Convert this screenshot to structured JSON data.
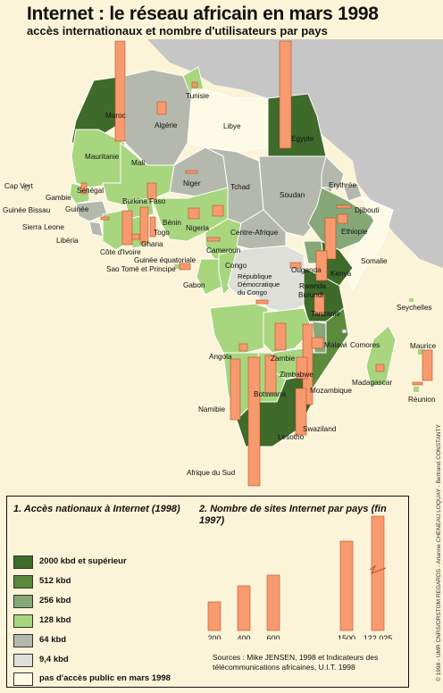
{
  "title": "Internet : le réseau africain en mars 1998",
  "subtitle": "accès internationaux et nombre d'utilisateurs par pays",
  "colors": {
    "sea": "#c6c6c6",
    "bg": "#fbf4d8",
    "bar": "#f79a6e",
    "c2000": "#3e6a2a",
    "c512": "#5b8a3d",
    "c256": "#86a878",
    "c128": "#a8d67f",
    "c64": "#b5b8ad",
    "c9": "#dedfd9",
    "c0": "#fdfbe6"
  },
  "countries": [
    {
      "name": "Tunisie"
    },
    {
      "name": "Maroc"
    },
    {
      "name": "Algérie"
    },
    {
      "name": "Libye"
    },
    {
      "name": "Egypte"
    },
    {
      "name": "Mauritanie"
    },
    {
      "name": "Mali"
    },
    {
      "name": "Niger"
    },
    {
      "name": "Tchad"
    },
    {
      "name": "Soudan"
    },
    {
      "name": "Cap Vert"
    },
    {
      "name": "Sénégal"
    },
    {
      "name": "Gambie"
    },
    {
      "name": "Guinée Bissau"
    },
    {
      "name": "Guinée"
    },
    {
      "name": "Sierra Leone"
    },
    {
      "name": "Libéria"
    },
    {
      "name": "Côte d'Ivoire"
    },
    {
      "name": "Burkina Faso"
    },
    {
      "name": "Ghana"
    },
    {
      "name": "Togo"
    },
    {
      "name": "Bénin"
    },
    {
      "name": "Nigeria"
    },
    {
      "name": "Guinée équatoriale"
    },
    {
      "name": "Cameroun"
    },
    {
      "name": "Centre-Afrique"
    },
    {
      "name": "Erythrée"
    },
    {
      "name": "Djibouti"
    },
    {
      "name": "Ethiopie"
    },
    {
      "name": "Somalie"
    },
    {
      "name": "Sao Tomé et Principe"
    },
    {
      "name": "Gabon"
    },
    {
      "name": "Congo"
    },
    {
      "name": "République Démocratique du Congo"
    },
    {
      "name": "Ouganda"
    },
    {
      "name": "Kenya"
    },
    {
      "name": "Rwanda"
    },
    {
      "name": "Burundi"
    },
    {
      "name": "Tanzanie"
    },
    {
      "name": "Seychelles"
    },
    {
      "name": "Angola"
    },
    {
      "name": "Zambie"
    },
    {
      "name": "Malawi"
    },
    {
      "name": "Comores"
    },
    {
      "name": "Maurice"
    },
    {
      "name": "Zimbabwe"
    },
    {
      "name": "Mozambique"
    },
    {
      "name": "Madagascar"
    },
    {
      "name": "Namibie"
    },
    {
      "name": "Botswana"
    },
    {
      "name": "Réunion"
    },
    {
      "name": "Swaziland"
    },
    {
      "name": "Lesotho"
    },
    {
      "name": "Afrique du Sud"
    }
  ],
  "legend": {
    "access_title": "1. Accès nationaux à Internet (1998)",
    "access_items": [
      {
        "label": "2000 kbd et supérieur",
        "color": "#3e6a2a"
      },
      {
        "label": "512 kbd",
        "color": "#5b8a3d"
      },
      {
        "label": "256 kbd",
        "color": "#86a878"
      },
      {
        "label": "128 kbd",
        "color": "#a8d67f"
      },
      {
        "label": "64 kbd",
        "color": "#b5b8ad"
      },
      {
        "label": "9,4 kbd",
        "color": "#dedfd9"
      },
      {
        "label": "pas d'accès public en mars 1998",
        "color": "#fdfbe6"
      }
    ],
    "sites_title": "2. Nombre de sites Internet par pays (fin 1997)",
    "sites_items": [
      {
        "label": "200",
        "value": 200
      },
      {
        "label": "400",
        "value": 400
      },
      {
        "label": "600",
        "value": 600
      },
      {
        "label": "1500",
        "value": 1500
      },
      {
        "label": "122 025",
        "value": 122025
      }
    ]
  },
  "sources": "Sources : Mike JENSEN, 1998 et Indicateurs des télécommunications africaines, U.I.T. 1998",
  "credit": "© 1998 - UMR CNRS/ORSTOM REGARDS - Arianne CHENEAU LOQUAY - Bertrand CONSTANTY"
}
